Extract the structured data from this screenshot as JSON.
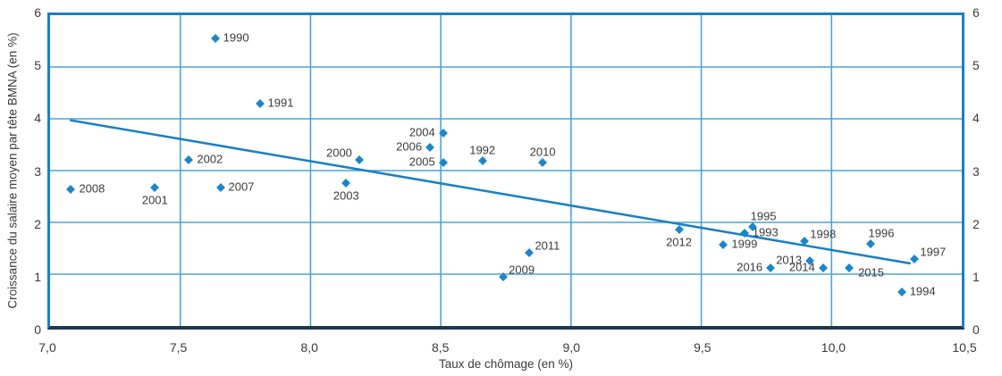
{
  "chart_data": {
    "type": "scatter",
    "title": "",
    "xlabel": "Taux de chômage (en %)",
    "ylabel": "Croissance du salaire moyen par tête BMNA (en %)",
    "xlim": [
      7.0,
      10.5
    ],
    "ylim": [
      0,
      6
    ],
    "grid": true,
    "legend": "none",
    "x_ticks": [
      {
        "label": "7,0",
        "value": 7.0
      },
      {
        "label": "7,5",
        "value": 7.5
      },
      {
        "label": "8,0",
        "value": 8.0
      },
      {
        "label": "8,5",
        "value": 8.5
      },
      {
        "label": "9,0",
        "value": 9.0
      },
      {
        "label": "9,5",
        "value": 9.5
      },
      {
        "label": "10,0",
        "value": 10.0
      },
      {
        "label": "10,5",
        "value": 10.5
      }
    ],
    "y_ticks": [
      {
        "label": "0",
        "value": 0
      },
      {
        "label": "1",
        "value": 1
      },
      {
        "label": "2",
        "value": 2
      },
      {
        "label": "3",
        "value": 3
      },
      {
        "label": "4",
        "value": 4
      },
      {
        "label": "5",
        "value": 5
      },
      {
        "label": "6",
        "value": 6
      }
    ],
    "y_ticks_both_sides": true,
    "x_gridlines": [
      7.5,
      8.0,
      8.5,
      9.0,
      9.5,
      10.0
    ],
    "y_gridlines": [
      1,
      2,
      3,
      4,
      5
    ],
    "points": [
      {
        "year": "1990",
        "x": 7.63,
        "y": 5.56,
        "label_pos": "right"
      },
      {
        "year": "1991",
        "x": 7.8,
        "y": 4.32,
        "label_pos": "right"
      },
      {
        "year": "1992",
        "x": 8.65,
        "y": 3.25,
        "label_pos": "above"
      },
      {
        "year": "1993",
        "x": 9.65,
        "y": 1.87,
        "label_pos": "right"
      },
      {
        "year": "1994",
        "x": 10.25,
        "y": 0.76,
        "label_pos": "right"
      },
      {
        "year": "1995",
        "x": 9.68,
        "y": 2.0,
        "label_pos": "above-right"
      },
      {
        "year": "1996",
        "x": 10.13,
        "y": 1.68,
        "label_pos": "above-right"
      },
      {
        "year": "1997",
        "x": 10.3,
        "y": 1.39,
        "label_pos": "right-above"
      },
      {
        "year": "1998",
        "x": 9.88,
        "y": 1.73,
        "label_pos": "right-above"
      },
      {
        "year": "1999",
        "x": 9.57,
        "y": 1.66,
        "label_pos": "right"
      },
      {
        "year": "2000",
        "x": 8.18,
        "y": 3.27,
        "label_pos": "left-above"
      },
      {
        "year": "2001",
        "x": 7.4,
        "y": 2.73,
        "label_pos": "below"
      },
      {
        "year": "2002",
        "x": 7.53,
        "y": 3.27,
        "label_pos": "right"
      },
      {
        "year": "2003",
        "x": 8.13,
        "y": 2.83,
        "label_pos": "below"
      },
      {
        "year": "2004",
        "x": 8.5,
        "y": 3.77,
        "label_pos": "left"
      },
      {
        "year": "2005",
        "x": 8.5,
        "y": 3.21,
        "label_pos": "left"
      },
      {
        "year": "2006",
        "x": 8.45,
        "y": 3.5,
        "label_pos": "left"
      },
      {
        "year": "2007",
        "x": 7.65,
        "y": 2.74,
        "label_pos": "right"
      },
      {
        "year": "2008",
        "x": 7.08,
        "y": 2.7,
        "label_pos": "right"
      },
      {
        "year": "2009",
        "x": 8.73,
        "y": 1.04,
        "label_pos": "right-above"
      },
      {
        "year": "2010",
        "x": 8.88,
        "y": 3.21,
        "label_pos": "above"
      },
      {
        "year": "2011",
        "x": 8.83,
        "y": 1.5,
        "label_pos": "right-above"
      },
      {
        "year": "2012",
        "x": 9.4,
        "y": 1.95,
        "label_pos": "below"
      },
      {
        "year": "2013",
        "x": 9.9,
        "y": 1.36,
        "label_pos": "left"
      },
      {
        "year": "2014",
        "x": 9.95,
        "y": 1.22,
        "label_pos": "left"
      },
      {
        "year": "2015",
        "x": 10.05,
        "y": 1.22,
        "label_pos": "right-below"
      },
      {
        "year": "2016",
        "x": 9.75,
        "y": 1.21,
        "label_pos": "left"
      }
    ],
    "trend_line": {
      "x1": 7.08,
      "y1": 3.97,
      "x2": 10.3,
      "y2": 1.21
    },
    "colors": {
      "point": "#1c86c8",
      "trend": "#1a80c4",
      "grid": "#4da3d8",
      "frame": "#1a80c4",
      "axis": "#1d3850",
      "text": "#3b3b3b"
    }
  }
}
